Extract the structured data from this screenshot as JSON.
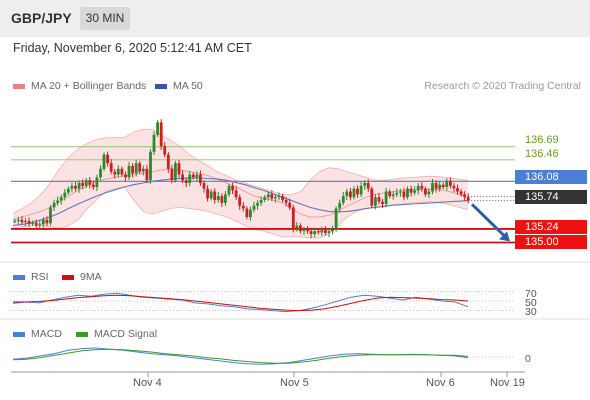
{
  "header": {
    "symbol": "GBP/JPY",
    "timeframe": "30 MIN"
  },
  "timestamp": "Friday, November 6, 2020 5:12:41 AM CET",
  "credit": "Research © 2020 Trading Central",
  "colors": {
    "bollinger": "#f08080",
    "ma50": "#3355aa",
    "up": "#2a8a2a",
    "down": "#c82020",
    "blue_line": "#4a7fd4",
    "red_line": "#cc1111",
    "green_line": "#8cc66a",
    "price_badge": "#333333",
    "arrow": "#2f5fa8",
    "rsi": "#4a7fd4",
    "rsi_ma": "#cc1111",
    "macd": "#4a7fd4",
    "macd_signal": "#3c9a2a"
  },
  "chart_data": [
    {
      "type": "candlestick",
      "legend": [
        "MA 20 + Bollinger Bands",
        "MA 50"
      ],
      "ylim": [
        134.78,
        137.55
      ],
      "x_ticks": [
        "Nov 4",
        "Nov 5",
        "Nov 6",
        "Nov 19"
      ],
      "horizontal_levels": [
        {
          "value": 136.69,
          "label": "136.69",
          "style": "green-thin"
        },
        {
          "value": 136.46,
          "label": "136.46",
          "style": "green-thin"
        },
        {
          "value": 136.08,
          "label": "136.08",
          "style": "blue-badge"
        },
        {
          "value": 135.24,
          "label": "135.24",
          "style": "red-badge"
        },
        {
          "value": 135.0,
          "label": "135.00",
          "style": "red-badge"
        }
      ],
      "current_price": {
        "value": 135.74,
        "label": "135.74"
      },
      "forecast_arrow": {
        "from": 135.78,
        "to": 135.02
      },
      "closes": [
        135.38,
        135.4,
        135.36,
        135.38,
        135.33,
        135.35,
        135.3,
        135.32,
        135.4,
        135.34,
        135.62,
        135.7,
        135.74,
        135.8,
        135.88,
        135.95,
        136.0,
        135.95,
        136.05,
        136.0,
        136.1,
        136.02,
        135.98,
        136.15,
        136.3,
        136.55,
        136.4,
        136.25,
        136.2,
        136.3,
        136.2,
        136.15,
        136.35,
        136.22,
        136.4,
        136.25,
        136.3,
        136.1,
        136.6,
        136.9,
        137.12,
        136.7,
        136.55,
        136.3,
        136.1,
        136.4,
        136.2,
        136.1,
        136.05,
        136.2,
        136.15,
        136.2,
        136.05,
        135.95,
        135.78,
        135.9,
        135.75,
        135.82,
        135.7,
        135.85,
        136.0,
        135.92,
        135.8,
        135.65,
        135.6,
        135.45,
        135.58,
        135.65,
        135.7,
        135.75,
        135.8,
        135.85,
        135.78,
        135.8,
        135.82,
        135.75,
        135.7,
        135.62,
        135.25,
        135.3,
        135.2,
        135.22,
        135.2,
        135.15,
        135.2,
        135.18,
        135.22,
        135.17,
        135.2,
        135.23,
        135.6,
        135.7,
        135.82,
        135.9,
        135.8,
        135.95,
        135.85,
        136.0,
        136.05,
        135.95,
        135.65,
        135.8,
        135.72,
        135.68,
        135.9,
        135.82,
        135.85,
        135.88,
        135.9,
        135.8,
        135.95,
        135.88,
        135.92,
        136.0,
        135.95,
        135.85,
        135.9,
        136.05,
        135.95,
        136.02,
        135.98,
        136.08,
        136.0,
        135.96,
        135.9,
        135.85,
        135.8,
        135.74
      ],
      "ma20": [
        135.4,
        135.45,
        135.5,
        135.55,
        135.62,
        135.72,
        135.82,
        135.92,
        136.0,
        136.08,
        136.12,
        136.15,
        136.18,
        136.2,
        136.22,
        136.25,
        136.28,
        136.3,
        136.28,
        136.25,
        136.22,
        136.18,
        136.12,
        136.05,
        135.98,
        135.9,
        135.82,
        135.78,
        135.75,
        135.7,
        135.6,
        135.5,
        135.45,
        135.45,
        135.48,
        135.55,
        135.65,
        135.72,
        135.8,
        135.85,
        135.88,
        135.9,
        135.92,
        135.93,
        135.94,
        135.94,
        135.93,
        135.9,
        135.85,
        135.8
      ],
      "bb_upper": [
        135.52,
        135.6,
        135.7,
        135.85,
        136.05,
        136.3,
        136.5,
        136.65,
        136.75,
        136.82,
        136.85,
        136.85,
        136.85,
        136.95,
        137.0,
        137.0,
        136.9,
        136.8,
        136.7,
        136.55,
        136.45,
        136.35,
        136.25,
        136.18,
        136.1,
        136.05,
        136.0,
        135.95,
        135.9,
        135.85,
        135.85,
        135.9,
        136.1,
        136.25,
        136.32,
        136.3,
        136.25,
        136.2,
        136.15,
        136.1,
        136.1,
        136.12,
        136.14,
        136.15,
        136.16,
        136.17,
        136.16,
        136.14,
        136.12,
        136.1
      ],
      "bb_lower": [
        135.25,
        135.28,
        135.3,
        135.3,
        135.28,
        135.25,
        135.3,
        135.4,
        135.6,
        135.75,
        135.9,
        135.95,
        135.98,
        135.75,
        135.55,
        135.5,
        135.55,
        135.6,
        135.62,
        135.6,
        135.58,
        135.55,
        135.5,
        135.45,
        135.38,
        135.3,
        135.25,
        135.2,
        135.15,
        135.1,
        135.1,
        135.1,
        135.08,
        135.08,
        135.15,
        135.3,
        135.45,
        135.55,
        135.6,
        135.62,
        135.64,
        135.66,
        135.68,
        135.7,
        135.71,
        135.72,
        135.7,
        135.67,
        135.62,
        135.58
      ],
      "ma50": [
        135.3,
        135.32,
        135.35,
        135.4,
        135.45,
        135.52,
        135.6,
        135.68,
        135.75,
        135.82,
        135.88,
        135.93,
        135.98,
        136.02,
        136.05,
        136.08,
        136.1,
        136.12,
        136.13,
        136.14,
        136.14,
        136.13,
        136.12,
        136.1,
        136.06,
        136.02,
        135.97,
        135.92,
        135.86,
        135.8,
        135.74,
        135.68,
        135.62,
        135.58,
        135.55,
        135.54,
        135.55,
        135.57,
        135.6,
        135.62,
        135.64,
        135.66,
        135.67,
        135.68,
        135.69,
        135.7,
        135.71,
        135.72,
        135.73,
        135.74
      ]
    },
    {
      "type": "line",
      "legend": [
        "RSI",
        "9MA"
      ],
      "levels": [
        70,
        50,
        30
      ],
      "ylim": [
        25,
        75
      ],
      "series": [
        {
          "name": "RSI",
          "values": [
            45,
            48,
            46,
            52,
            58,
            62,
            60,
            64,
            66,
            62,
            58,
            56,
            54,
            52,
            46,
            44,
            40,
            38,
            34,
            32,
            30,
            28,
            30,
            35,
            42,
            50,
            58,
            62,
            60,
            56,
            52,
            58,
            54,
            50,
            48,
            38
          ]
        },
        {
          "name": "9MA",
          "values": [
            48,
            48,
            49,
            51,
            54,
            57,
            59,
            61,
            62,
            61,
            59,
            57,
            55,
            53,
            50,
            47,
            44,
            41,
            38,
            35,
            33,
            31,
            30,
            31,
            34,
            39,
            45,
            51,
            56,
            58,
            57,
            56,
            55,
            53,
            52,
            50
          ]
        }
      ]
    },
    {
      "type": "line",
      "legend": [
        "MACD",
        "MACD Signal"
      ],
      "levels": [
        0
      ],
      "ylim": [
        -0.25,
        0.25
      ],
      "series": [
        {
          "name": "MACD",
          "values": [
            -0.04,
            -0.02,
            0.02,
            0.06,
            0.12,
            0.15,
            0.16,
            0.14,
            0.12,
            0.09,
            0.06,
            0.04,
            0.02,
            -0.01,
            -0.04,
            -0.07,
            -0.1,
            -0.12,
            -0.13,
            -0.12,
            -0.1,
            -0.06,
            -0.02,
            0.02,
            0.05,
            0.06,
            0.05,
            0.04,
            0.04,
            0.05,
            0.04,
            0.03,
            0.02,
            -0.01
          ]
        },
        {
          "name": "MACD Signal",
          "values": [
            -0.05,
            -0.04,
            -0.01,
            0.03,
            0.07,
            0.11,
            0.13,
            0.14,
            0.13,
            0.11,
            0.09,
            0.06,
            0.04,
            0.02,
            -0.01,
            -0.03,
            -0.06,
            -0.08,
            -0.1,
            -0.11,
            -0.11,
            -0.09,
            -0.06,
            -0.02,
            0.01,
            0.03,
            0.04,
            0.04,
            0.04,
            0.04,
            0.04,
            0.03,
            0.03,
            0.01
          ]
        }
      ]
    }
  ]
}
